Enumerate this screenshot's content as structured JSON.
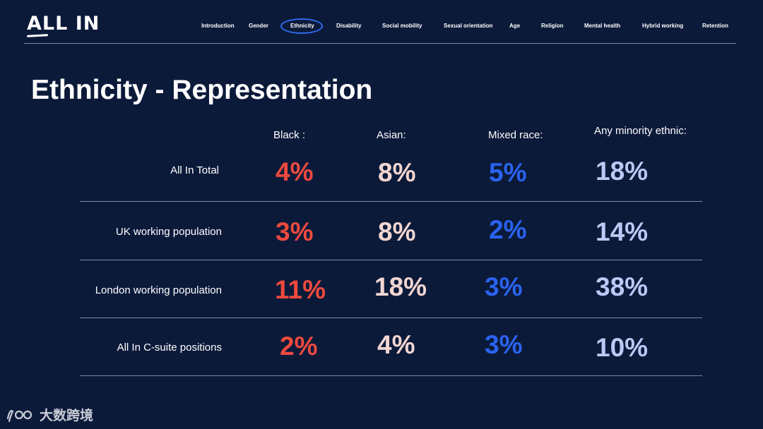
{
  "brand": {
    "logo_text": "ALL IN"
  },
  "nav": {
    "items": [
      {
        "label": "Introduction"
      },
      {
        "label": "Gender"
      },
      {
        "label": "Ethnicity",
        "active": true
      },
      {
        "label": "Disability"
      },
      {
        "label": "Social mobility"
      },
      {
        "label": "Sexual orientation"
      },
      {
        "label": "Age"
      },
      {
        "label": "Religion"
      },
      {
        "label": "Mental health"
      },
      {
        "label": "Hybrid working"
      },
      {
        "label": "Retention"
      }
    ]
  },
  "page": {
    "title": "Ethnicity - Representation"
  },
  "table": {
    "columns": [
      "Black :",
      "Asian:",
      "Mixed race:",
      "Any minority ethnic:"
    ],
    "rows": [
      {
        "label": "All In Total",
        "values": [
          "4%",
          "8%",
          "5%",
          "18%"
        ]
      },
      {
        "label": "UK working population",
        "values": [
          "3%",
          "8%",
          "2%",
          "14%"
        ]
      },
      {
        "label": "London working population",
        "values": [
          "11%",
          "18%",
          "3%",
          "38%"
        ]
      },
      {
        "label": "All In C-suite positions",
        "values": [
          "2%",
          "4%",
          "3%",
          "10%"
        ]
      }
    ]
  },
  "colors": {
    "background": "#0c1a3a",
    "black_col": "#ee4a3e",
    "asian_col": "#f2d6d2",
    "mixed_col": "#2a63f0",
    "minority_col": "#bcc8f5",
    "nav_active_ring": "#2f6cf0"
  },
  "watermark": {
    "text": "大数跨境"
  }
}
